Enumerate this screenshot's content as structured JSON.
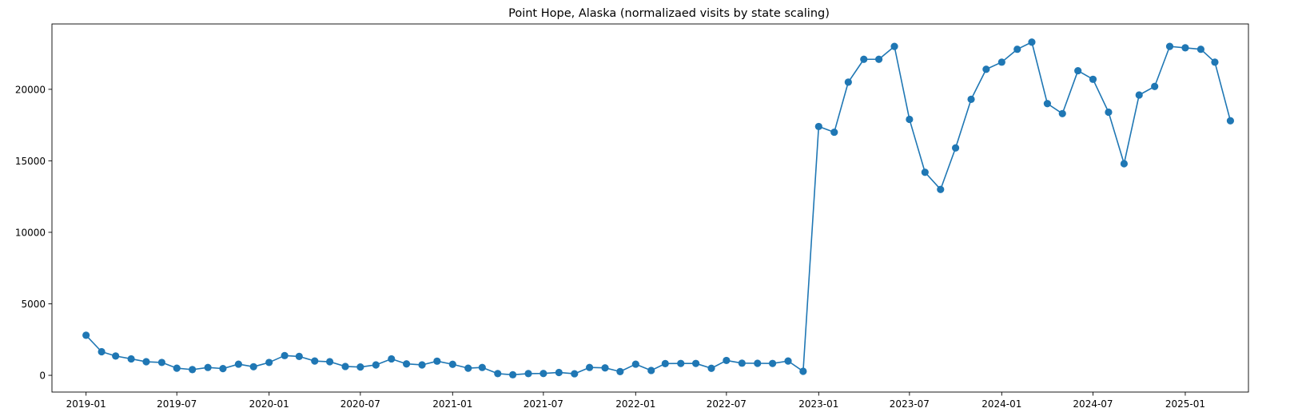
{
  "chart_data": {
    "type": "line",
    "title": "Point Hope, Alaska (normalizaed visits by state scaling)",
    "xlabel": "",
    "ylabel": "",
    "x_tick_labels": [
      "2019-01",
      "2019-07",
      "2020-01",
      "2020-07",
      "2021-01",
      "2021-07",
      "2022-01",
      "2022-07",
      "2023-01",
      "2023-07",
      "2024-01",
      "2024-07",
      "2025-01"
    ],
    "y_tick_labels": [
      "0",
      "5000",
      "10000",
      "15000",
      "20000"
    ],
    "y_ticks": [
      0,
      5000,
      10000,
      15000,
      20000
    ],
    "ylim": [
      -1170,
      24570
    ],
    "xlim": [
      "2018-10-25",
      "2025-05-07"
    ],
    "grid": false,
    "legend": "none",
    "series_color": "#1f77b4",
    "series": [
      {
        "marker": "circle",
        "x": [
          "2019-01",
          "2019-02",
          "2019-03",
          "2019-04",
          "2019-05",
          "2019-06",
          "2019-07",
          "2019-08",
          "2019-09",
          "2019-10",
          "2019-11",
          "2019-12",
          "2020-01",
          "2020-02",
          "2020-03",
          "2020-04",
          "2020-05",
          "2020-06",
          "2020-07",
          "2020-08",
          "2020-09",
          "2020-10",
          "2020-11",
          "2020-12",
          "2021-01",
          "2021-02",
          "2021-03",
          "2021-04",
          "2021-05",
          "2021-06",
          "2021-07",
          "2021-08",
          "2021-09",
          "2021-10",
          "2021-11",
          "2021-12",
          "2022-01",
          "2022-02",
          "2022-03",
          "2022-04",
          "2022-05",
          "2022-06",
          "2022-07",
          "2022-08",
          "2022-09",
          "2022-10",
          "2022-11",
          "2022-12",
          "2023-01",
          "2023-02",
          "2023-03",
          "2023-04",
          "2023-05",
          "2023-06",
          "2023-07",
          "2023-08",
          "2023-09",
          "2023-10",
          "2023-11",
          "2023-12",
          "2024-01",
          "2024-02",
          "2024-03",
          "2024-04",
          "2024-05",
          "2024-06",
          "2024-07",
          "2024-08",
          "2024-09",
          "2024-10",
          "2024-11",
          "2024-12",
          "2025-01",
          "2025-02",
          "2025-03",
          "2025-04"
        ],
        "values": [
          2800,
          1650,
          1350,
          1150,
          950,
          900,
          500,
          400,
          550,
          470,
          780,
          600,
          900,
          1380,
          1320,
          1000,
          950,
          620,
          580,
          730,
          1150,
          800,
          730,
          990,
          770,
          500,
          550,
          120,
          40,
          120,
          130,
          200,
          110,
          550,
          520,
          260,
          780,
          340,
          820,
          830,
          830,
          490,
          1040,
          850,
          840,
          830,
          1000,
          280,
          17400,
          17000,
          20500,
          22100,
          22100,
          23000,
          17900,
          14200,
          13000,
          15900,
          19300,
          21400,
          21900,
          22800,
          23300,
          19000,
          18300,
          21300,
          20700,
          18400,
          14800,
          19600,
          20200,
          23000,
          22900,
          22800,
          21900,
          17800
        ]
      }
    ]
  }
}
